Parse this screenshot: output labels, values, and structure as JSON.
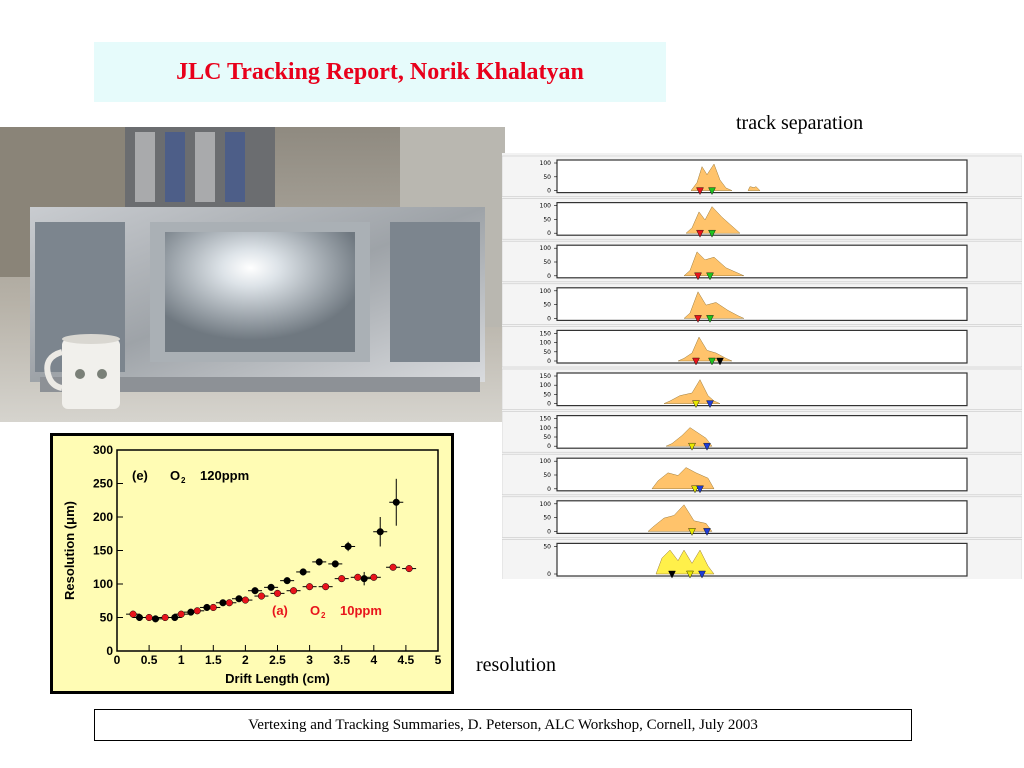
{
  "title": "JLC Tracking Report, Norik Khalatyan",
  "captions": {
    "track_separation": "track separation",
    "resolution": "resolution"
  },
  "footer": "Vertexing and Tracking Summaries, D. Peterson,  ALC Workshop, Cornell, July 2003",
  "photo": {
    "description_icons": [
      "detector-chamber-icon",
      "coffee-mug-icon"
    ]
  },
  "track_panels": [
    {
      "ticks": [
        "100",
        "50",
        "0"
      ],
      "markers": [
        "#e8141b",
        "#1ec21e"
      ]
    },
    {
      "ticks": [
        "100",
        "50",
        "0"
      ],
      "markers": [
        "#e8141b",
        "#1ec21e"
      ]
    },
    {
      "ticks": [
        "100",
        "50",
        "0"
      ],
      "markers": [
        "#e8141b",
        "#1ec21e"
      ]
    },
    {
      "ticks": [
        "100",
        "50",
        "0"
      ],
      "markers": [
        "#e8141b",
        "#1ec21e"
      ]
    },
    {
      "ticks": [
        "150",
        "100",
        "50",
        "0"
      ],
      "markers": [
        "#e8141b",
        "#1ec21e",
        "#000000"
      ]
    },
    {
      "ticks": [
        "150",
        "100",
        "50",
        "0"
      ],
      "markers": [
        "#e8e800",
        "#1e3cd8"
      ]
    },
    {
      "ticks": [
        "150",
        "100",
        "50",
        "0"
      ],
      "markers": [
        "#e8e800",
        "#1e3cd8"
      ]
    },
    {
      "ticks": [
        "100",
        "50",
        "0"
      ],
      "markers": [
        "#e8e800",
        "#1e3cd8"
      ]
    },
    {
      "ticks": [
        "100",
        "50",
        "0"
      ],
      "markers": [
        "#e8e800",
        "#1e3cd8"
      ]
    },
    {
      "ticks": [
        "50",
        "0"
      ],
      "markers": [
        "#000000",
        "#e8e800",
        "#1e3cd8"
      ]
    }
  ],
  "chart_data": {
    "type": "scatter",
    "xlabel": "Drift Length (cm)",
    "ylabel": "Resolution (μm)",
    "xlim": [
      0,
      5
    ],
    "ylim": [
      0,
      300
    ],
    "xticks": [
      "0",
      "0.5",
      "1",
      "1.5",
      "2",
      "2.5",
      "3",
      "3.5",
      "4",
      "4.5",
      "5"
    ],
    "yticks": [
      "0",
      "50",
      "100",
      "150",
      "200",
      "250",
      "300"
    ],
    "background": "#fffcb4",
    "annotations": [
      {
        "label": "(e)",
        "gas": "O",
        "sub": "2",
        "conc": "120ppm",
        "color": "#000000"
      },
      {
        "label": "(a)",
        "gas": "O",
        "sub": "2",
        "conc": "10ppm",
        "color": "#e8141b"
      }
    ],
    "series": [
      {
        "color": "#000000",
        "points": [
          {
            "x": 0.35,
            "y": 50,
            "err": 3
          },
          {
            "x": 0.6,
            "y": 48,
            "err": 3
          },
          {
            "x": 0.9,
            "y": 50,
            "err": 3
          },
          {
            "x": 1.15,
            "y": 58,
            "err": 3
          },
          {
            "x": 1.4,
            "y": 65,
            "err": 3
          },
          {
            "x": 1.65,
            "y": 72,
            "err": 3
          },
          {
            "x": 1.9,
            "y": 78,
            "err": 3
          },
          {
            "x": 2.15,
            "y": 90,
            "err": 4
          },
          {
            "x": 2.4,
            "y": 95,
            "err": 4
          },
          {
            "x": 2.65,
            "y": 105,
            "err": 4
          },
          {
            "x": 2.9,
            "y": 118,
            "err": 5
          },
          {
            "x": 3.15,
            "y": 133,
            "err": 5
          },
          {
            "x": 3.4,
            "y": 130,
            "err": 5
          },
          {
            "x": 3.6,
            "y": 156,
            "err": 7
          },
          {
            "x": 3.85,
            "y": 108,
            "err": 10
          },
          {
            "x": 4.1,
            "y": 178,
            "err": 22
          },
          {
            "x": 4.35,
            "y": 222,
            "err": 35
          }
        ]
      },
      {
        "color": "#e8141b",
        "points": [
          {
            "x": 0.25,
            "y": 55,
            "err": 2
          },
          {
            "x": 0.5,
            "y": 50,
            "err": 2
          },
          {
            "x": 0.75,
            "y": 50,
            "err": 2
          },
          {
            "x": 1.0,
            "y": 55,
            "err": 2
          },
          {
            "x": 1.25,
            "y": 60,
            "err": 2
          },
          {
            "x": 1.5,
            "y": 65,
            "err": 2
          },
          {
            "x": 1.75,
            "y": 72,
            "err": 2
          },
          {
            "x": 2.0,
            "y": 76,
            "err": 2
          },
          {
            "x": 2.25,
            "y": 82,
            "err": 2
          },
          {
            "x": 2.5,
            "y": 86,
            "err": 2
          },
          {
            "x": 2.75,
            "y": 90,
            "err": 2
          },
          {
            "x": 3.0,
            "y": 96,
            "err": 2
          },
          {
            "x": 3.25,
            "y": 96,
            "err": 2
          },
          {
            "x": 3.5,
            "y": 108,
            "err": 2
          },
          {
            "x": 3.75,
            "y": 110,
            "err": 2
          },
          {
            "x": 4.0,
            "y": 110,
            "err": 2
          },
          {
            "x": 4.3,
            "y": 125,
            "err": 2
          },
          {
            "x": 4.55,
            "y": 123,
            "err": 2
          }
        ]
      }
    ]
  }
}
